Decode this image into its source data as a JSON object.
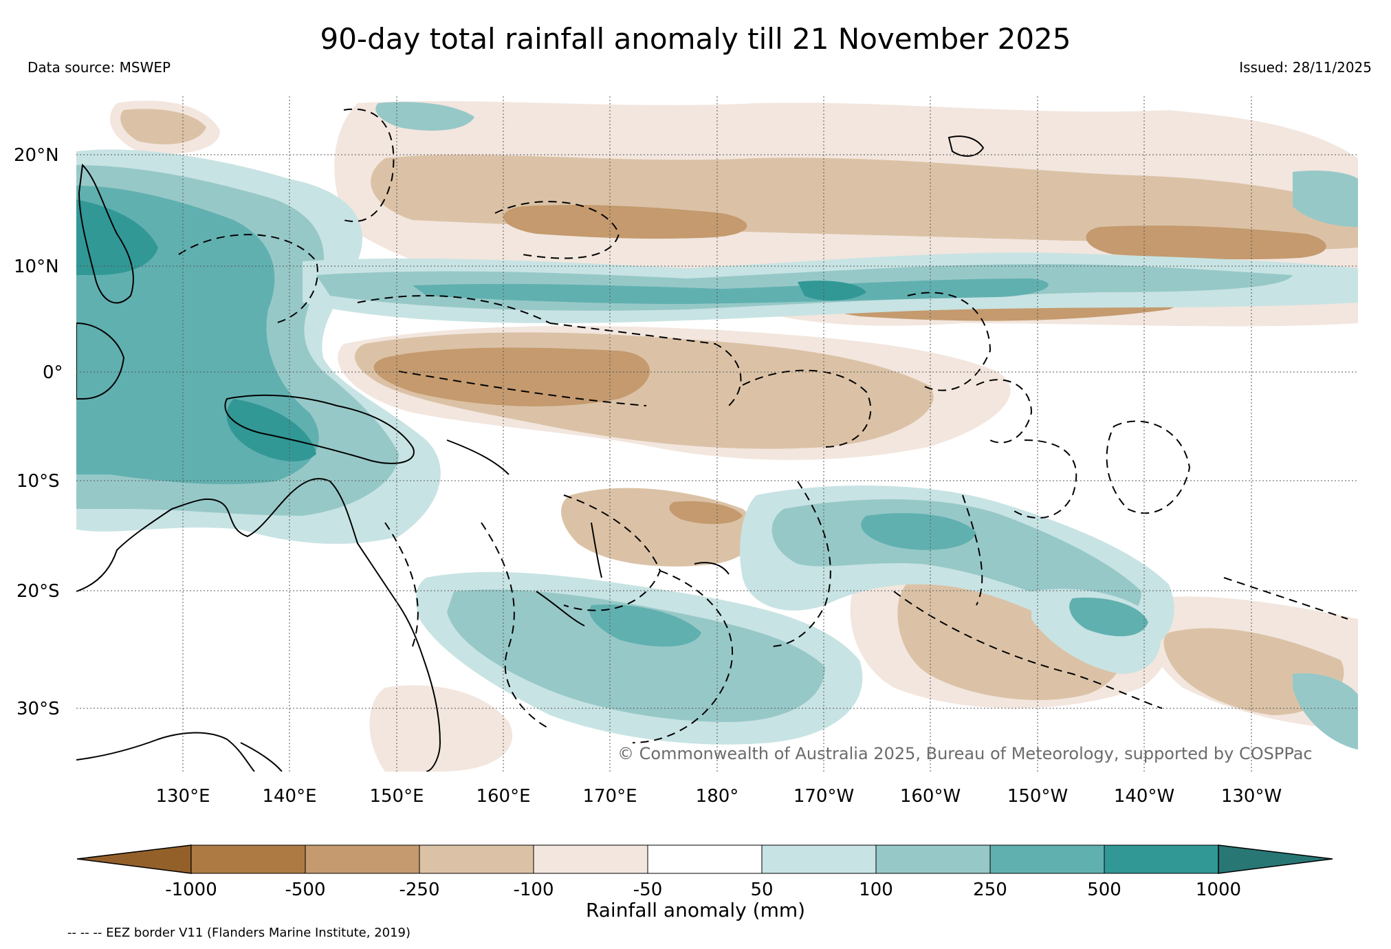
{
  "title": "90-day total rainfall anomaly till 21 November 2025",
  "data_source": "Data source: MSWEP",
  "issued": "Issued: 28/11/2025",
  "copyright": "© Commonwealth of Australia 2025, Bureau of Meteorology, supported by COSPPac",
  "colorbar": {
    "title": "Rainfall anomaly (mm)",
    "tick_labels": [
      "-1000",
      "-500",
      "-250",
      "-100",
      "-50",
      "50",
      "100",
      "250",
      "500",
      "1000"
    ],
    "colors": [
      "#94602a",
      "#ad7a43",
      "#c49a6e",
      "#dbc2a6",
      "#f2e6de",
      "#ffffff",
      "#c8e3e3",
      "#97c8c8",
      "#61b0b0",
      "#319896",
      "#287775"
    ],
    "units": "mm"
  },
  "axes": {
    "lon_labels": [
      "130°E",
      "140°E",
      "150°E",
      "160°E",
      "170°E",
      "180°",
      "170°W",
      "160°W",
      "150°W",
      "140°W",
      "130°W"
    ],
    "lat_labels": [
      "20°N",
      "10°N",
      "0°",
      "10°S",
      "20°S",
      "30°S"
    ]
  },
  "map": {
    "region": "Western and central Pacific Ocean",
    "variable": "Rainfall anomaly",
    "lon_range": [
      120,
      240
    ],
    "lat_range": [
      -35,
      25
    ]
  },
  "legend_note": "-- -- -- EEZ border V11 (Flanders Marine Institute, 2019)"
}
